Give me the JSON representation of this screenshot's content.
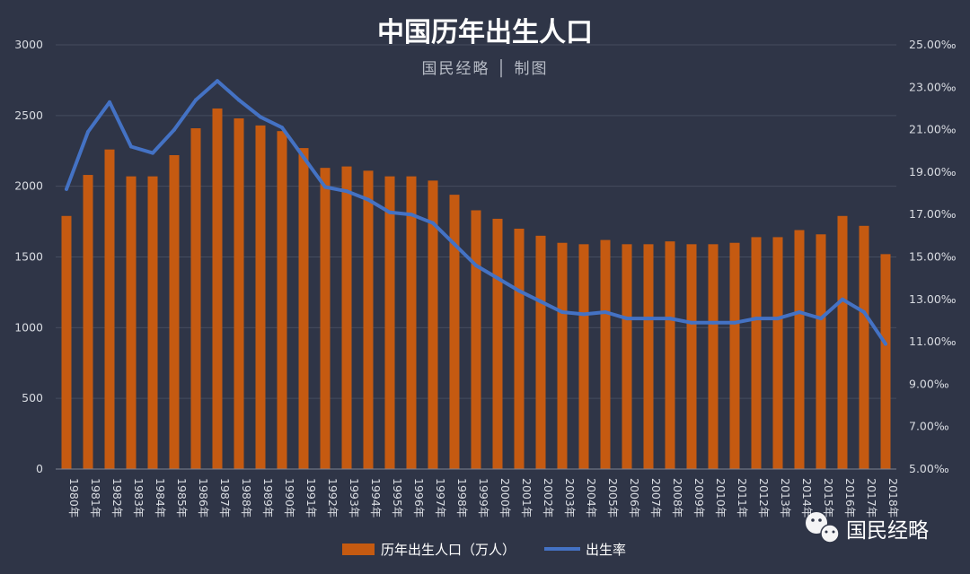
{
  "chart_data": {
    "type": "bar",
    "title": "中国历年出生人口",
    "subtitle": "国民经略 │ 制图",
    "categories": [
      "1980年",
      "1981年",
      "1982年",
      "1983年",
      "1984年",
      "1985年",
      "1986年",
      "1987年",
      "1988年",
      "1989年",
      "1990年",
      "1991年",
      "1992年",
      "1993年",
      "1994年",
      "1995年",
      "1996年",
      "1997年",
      "1998年",
      "1999年",
      "2000年",
      "2001年",
      "2002年",
      "2003年",
      "2004年",
      "2005年",
      "2006年",
      "2007年",
      "2008年",
      "2009年",
      "2010年",
      "2011年",
      "2012年",
      "2013年",
      "2014年",
      "2015年",
      "2016年",
      "2017年",
      "2018年"
    ],
    "y_left": {
      "ylim": [
        0,
        3000
      ],
      "ticks": [
        "0",
        "500",
        "1000",
        "1500",
        "2000",
        "2500",
        "3000"
      ]
    },
    "y_right": {
      "ylim": [
        5,
        25
      ],
      "ticks": [
        "5.00‰",
        "7.00‰",
        "9.00‰",
        "11.00‰",
        "13.00‰",
        "15.00‰",
        "17.00‰",
        "19.00‰",
        "21.00‰",
        "23.00‰",
        "25.00‰"
      ]
    },
    "series": [
      {
        "name": "历年出生人口（万人）",
        "kind": "bar",
        "axis": "left",
        "color": "#c55a11",
        "values": [
          1790,
          2080,
          2260,
          2070,
          2070,
          2220,
          2410,
          2550,
          2480,
          2430,
          2390,
          2270,
          2130,
          2140,
          2110,
          2070,
          2070,
          2040,
          1940,
          1830,
          1770,
          1700,
          1650,
          1600,
          1590,
          1620,
          1590,
          1590,
          1610,
          1590,
          1590,
          1600,
          1640,
          1640,
          1690,
          1660,
          1790,
          1720,
          1520
        ]
      },
      {
        "name": "出生率",
        "kind": "line",
        "axis": "right",
        "color": "#4472c4",
        "values": [
          18.2,
          20.9,
          22.3,
          20.2,
          19.9,
          21.0,
          22.4,
          23.3,
          22.4,
          21.6,
          21.1,
          19.7,
          18.3,
          18.1,
          17.7,
          17.1,
          17.0,
          16.6,
          15.6,
          14.6,
          14.0,
          13.4,
          12.9,
          12.4,
          12.3,
          12.4,
          12.1,
          12.1,
          12.1,
          11.9,
          11.9,
          11.9,
          12.1,
          12.1,
          12.4,
          12.1,
          13.0,
          12.4,
          10.9
        ]
      }
    ],
    "legend": "bottom",
    "grid": true
  },
  "watermark": {
    "text": "国民经略",
    "icon": "wechat-icon"
  }
}
